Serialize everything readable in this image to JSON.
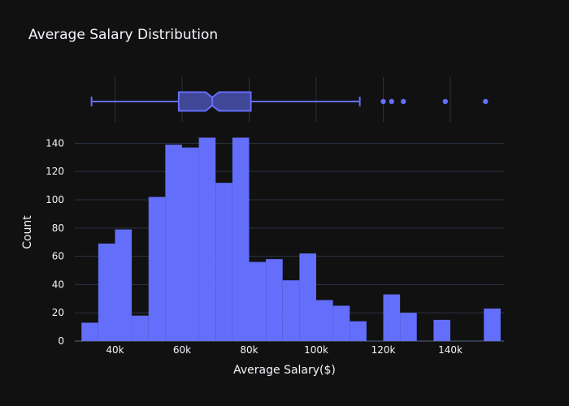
{
  "chart_data": {
    "type": "bar",
    "title": "Average Salary Distribution",
    "xlabel": "Average Salary($)",
    "ylabel": "Count",
    "xlim": [
      28000,
      156000
    ],
    "ylim": [
      0,
      146
    ],
    "bin_width": 5000,
    "bin_starts": [
      30000,
      35000,
      40000,
      45000,
      50000,
      55000,
      60000,
      65000,
      70000,
      75000,
      80000,
      85000,
      90000,
      95000,
      100000,
      105000,
      110000,
      115000,
      120000,
      125000,
      130000,
      135000,
      140000,
      145000,
      150000
    ],
    "values": [
      13,
      69,
      79,
      18,
      102,
      139,
      137,
      144,
      112,
      144,
      56,
      58,
      43,
      62,
      29,
      25,
      14,
      0,
      33,
      20,
      0,
      15,
      0,
      0,
      23
    ],
    "x_ticks": [
      {
        "v": 40000,
        "label": "40k"
      },
      {
        "v": 60000,
        "label": "60k"
      },
      {
        "v": 80000,
        "label": "80k"
      },
      {
        "v": 100000,
        "label": "100k"
      },
      {
        "v": 120000,
        "label": "120k"
      },
      {
        "v": 140000,
        "label": "140k"
      }
    ],
    "y_ticks": [
      {
        "v": 0,
        "label": "0"
      },
      {
        "v": 20,
        "label": "20"
      },
      {
        "v": 40,
        "label": "40"
      },
      {
        "v": 60,
        "label": "60"
      },
      {
        "v": 80,
        "label": "80"
      },
      {
        "v": 100,
        "label": "100"
      },
      {
        "v": 120,
        "label": "120"
      },
      {
        "v": 140,
        "label": "140"
      }
    ],
    "boxplot": {
      "min": 33000,
      "q1": 59000,
      "median": 69000,
      "q3": 80500,
      "upper_fence": 113000,
      "notch_low": 67000,
      "notch_high": 71000,
      "outliers": [
        120000,
        122500,
        126000,
        138500,
        150500
      ]
    },
    "colors": {
      "background": "#111111",
      "bar": "#636efa",
      "grid": "#283442",
      "text": "#f2f5fa",
      "box_fill": "#3f4796"
    }
  }
}
